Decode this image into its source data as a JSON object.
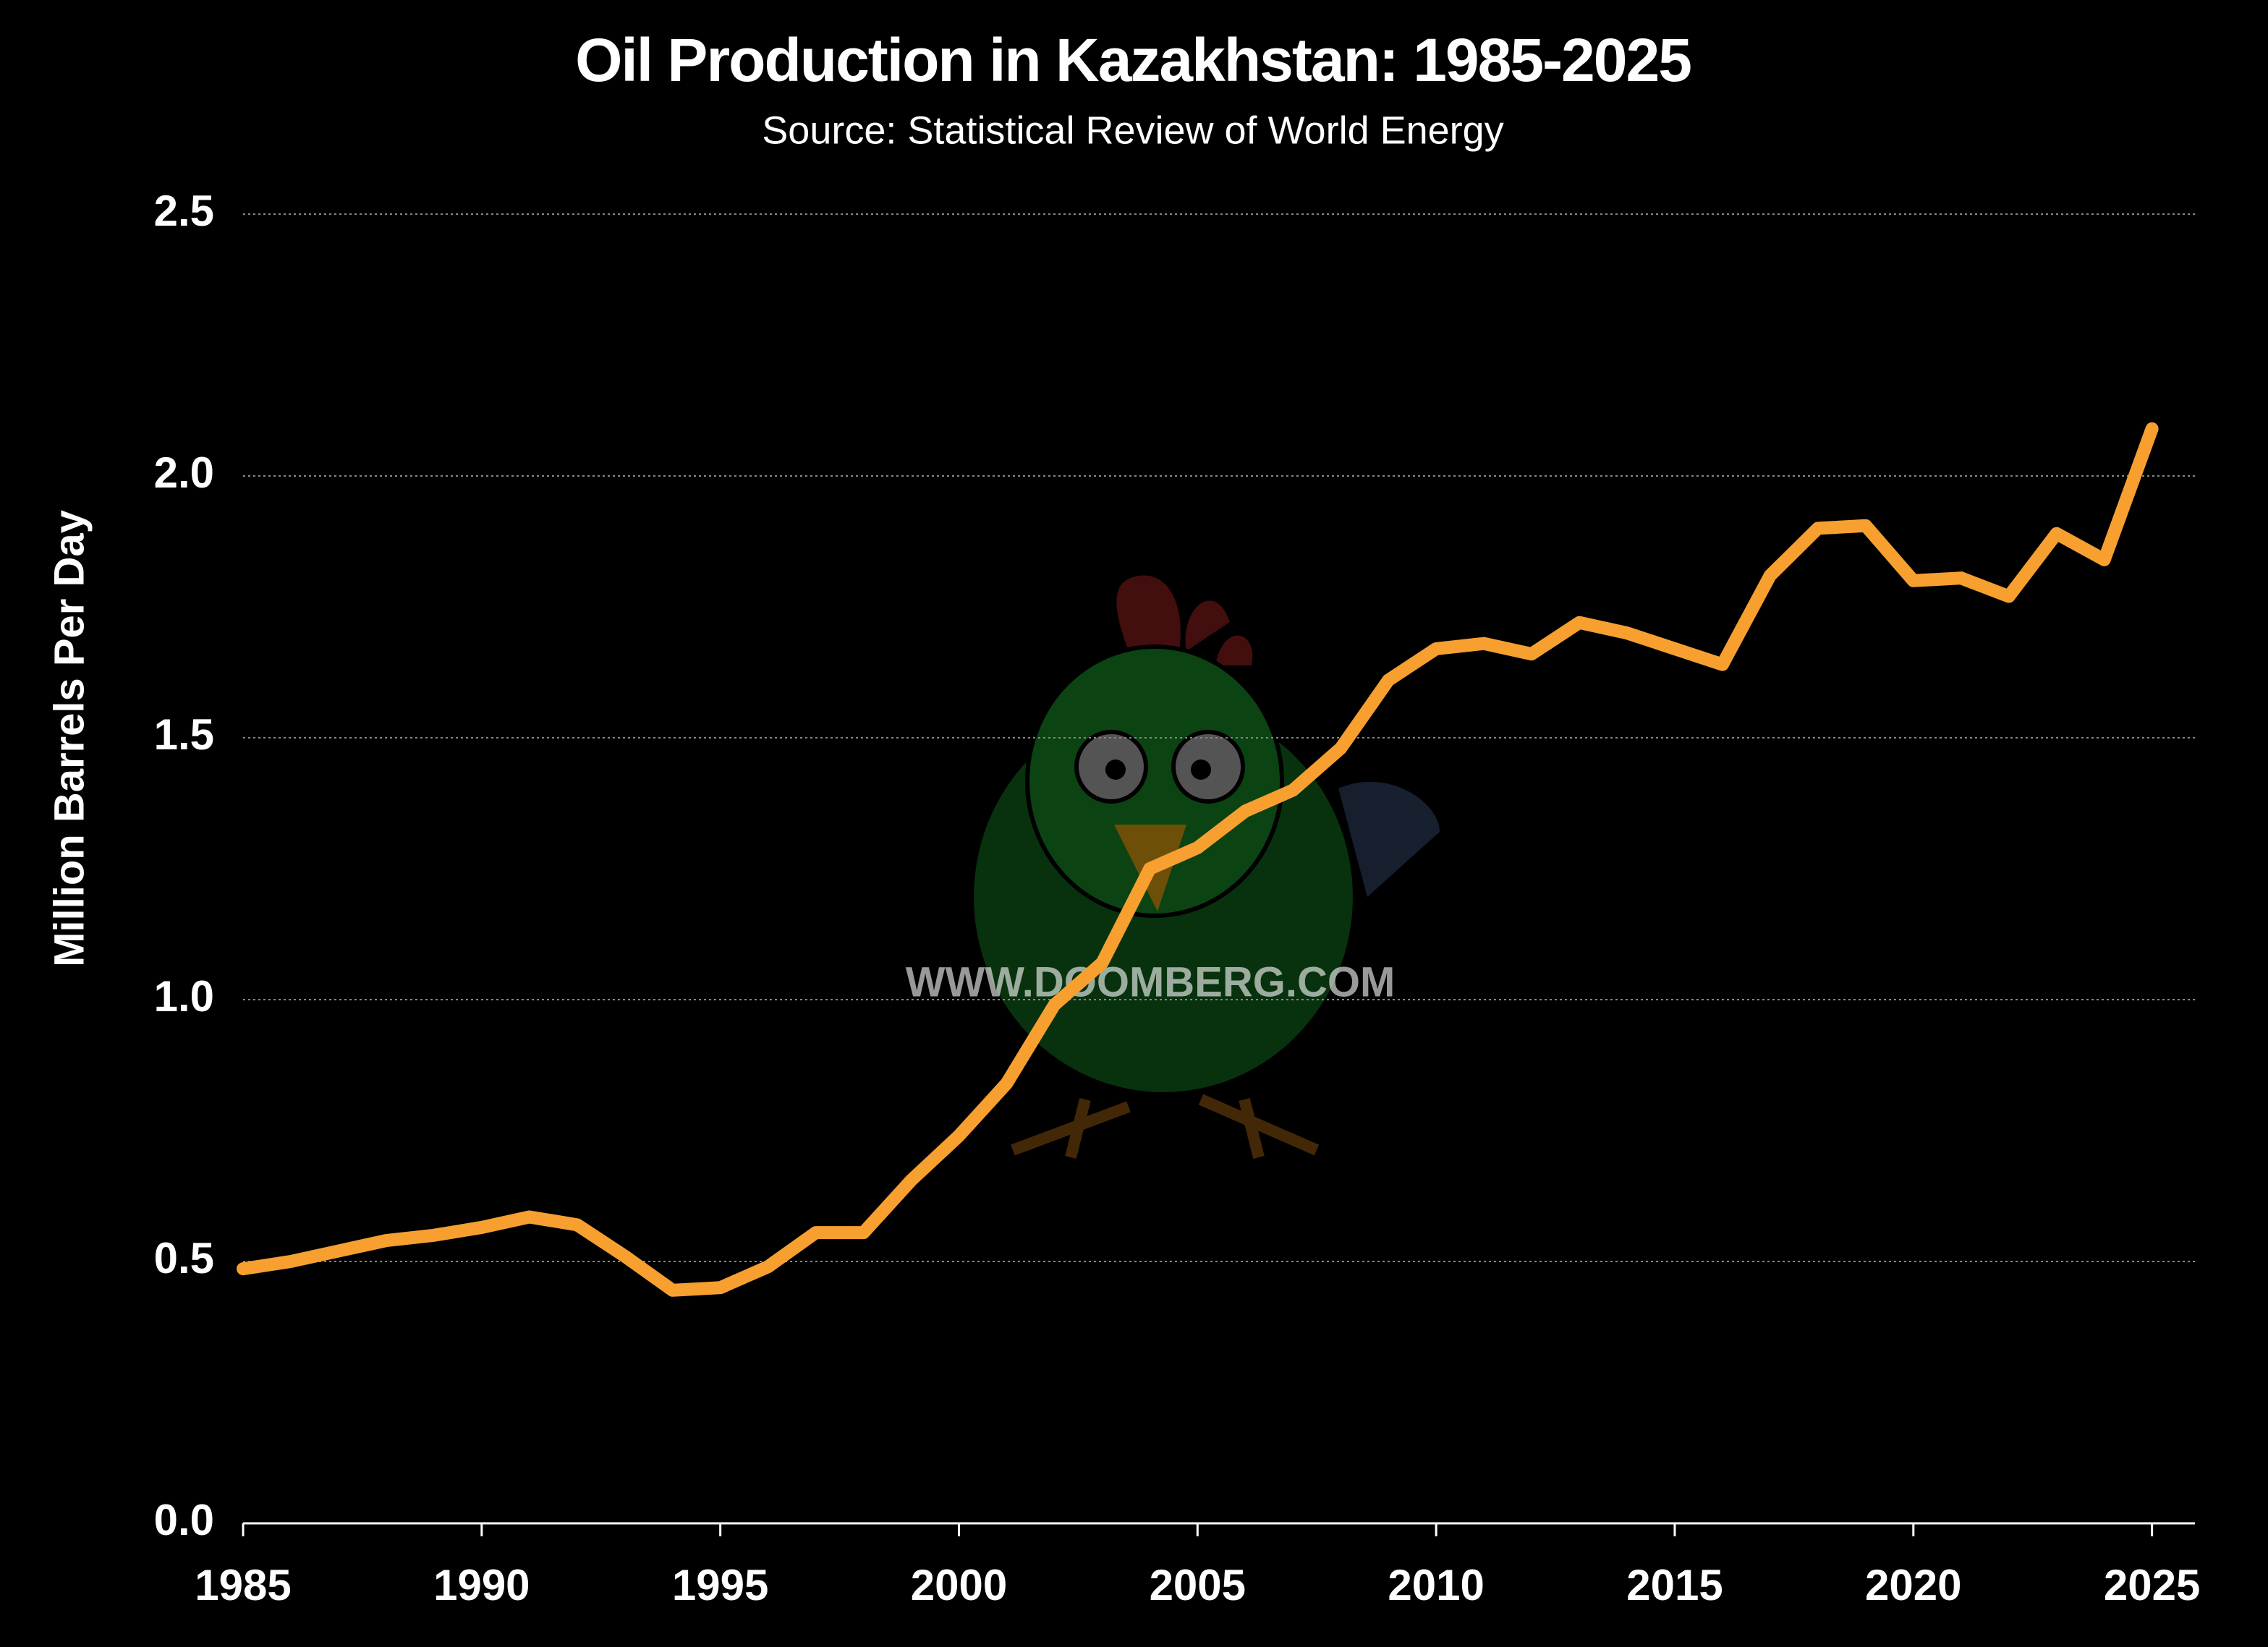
{
  "chart_data": {
    "type": "line",
    "title": "Oil Production in Kazakhstan: 1985-2025",
    "subtitle": "Source: Statistical Review of World Energy",
    "y_label": "Million Barrels Per Day",
    "watermark": "WWW.DOOMBERG.COM",
    "x": [
      1985,
      1986,
      1987,
      1988,
      1989,
      1990,
      1991,
      1992,
      1993,
      1994,
      1995,
      1996,
      1997,
      1998,
      1999,
      2000,
      2001,
      2002,
      2003,
      2004,
      2005,
      2006,
      2007,
      2008,
      2009,
      2010,
      2011,
      2012,
      2013,
      2014,
      2015,
      2016,
      2017,
      2018,
      2019,
      2020,
      2021,
      2022,
      2023,
      2024,
      2025
    ],
    "series": [
      {
        "name": "Oil Production",
        "color": "#f7a030",
        "values": [
          0.486,
          0.5,
          0.52,
          0.54,
          0.55,
          0.565,
          0.585,
          0.57,
          0.51,
          0.445,
          0.45,
          0.49,
          0.555,
          0.555,
          0.655,
          0.74,
          0.84,
          0.99,
          1.07,
          1.25,
          1.29,
          1.36,
          1.4,
          1.48,
          1.61,
          1.67,
          1.68,
          1.66,
          1.72,
          1.7,
          1.67,
          1.64,
          1.81,
          1.9,
          1.905,
          1.8,
          1.805,
          1.77,
          1.89,
          1.84,
          2.09
        ]
      }
    ],
    "xlim": [
      1985,
      2025.9
    ],
    "xticks": [
      1985,
      1990,
      1995,
      2000,
      2005,
      2010,
      2015,
      2020,
      2025
    ],
    "ylim": [
      0,
      2.5
    ],
    "yticks": [
      {
        "value": 0,
        "label": "0.0"
      },
      0.5,
      {
        "value": 1,
        "label": "1.0"
      },
      1.5,
      {
        "value": 2,
        "label": "2.0"
      },
      2.5
    ],
    "grid": true
  }
}
